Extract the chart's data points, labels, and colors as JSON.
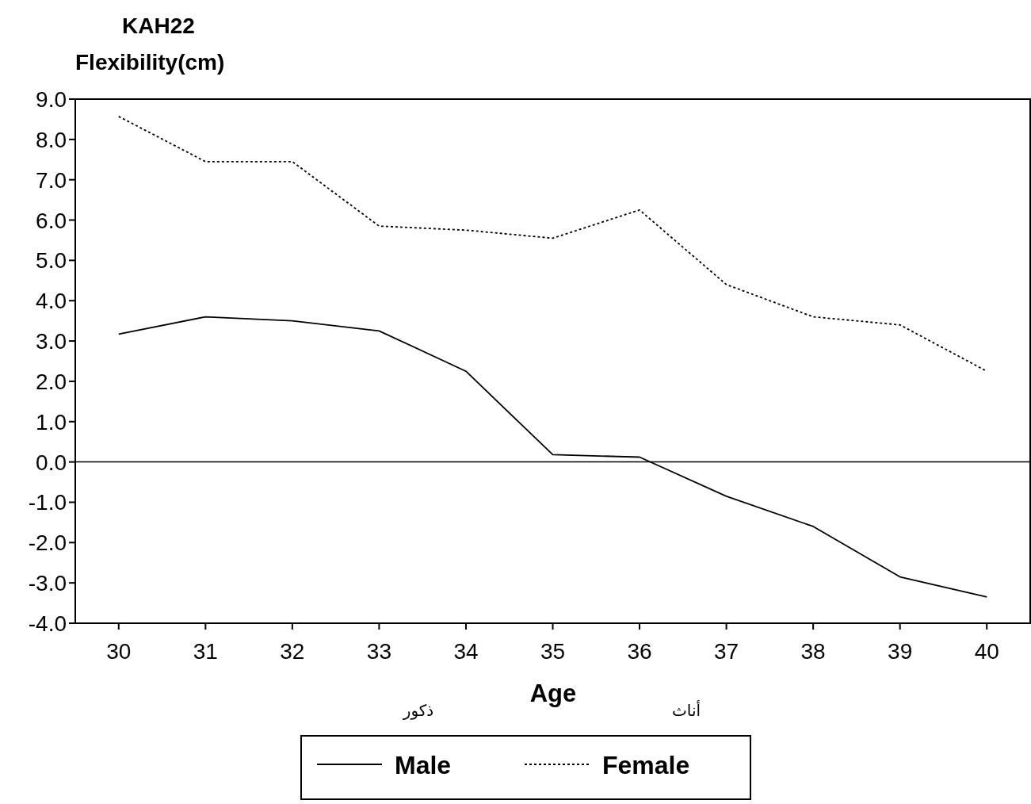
{
  "chart_data": {
    "type": "line",
    "title": "KAH22",
    "ylabel": "Flexibility(cm)",
    "xlabel": "Age",
    "x": [
      30,
      31,
      32,
      33,
      34,
      35,
      36,
      37,
      38,
      39,
      40
    ],
    "series": [
      {
        "name": "Male",
        "color": "#000000",
        "line_style": "solid",
        "values": [
          3.17,
          3.6,
          3.5,
          3.25,
          2.25,
          0.18,
          0.12,
          -0.85,
          -1.6,
          -2.85,
          -3.35
        ]
      },
      {
        "name": "Female",
        "color": "#000000",
        "line_style": "dotted",
        "values": [
          8.57,
          7.45,
          7.45,
          5.85,
          5.75,
          5.55,
          6.25,
          4.4,
          3.6,
          3.4,
          2.25
        ]
      }
    ],
    "xlim": [
      29.5,
      40.5
    ],
    "xticks": [
      30,
      31,
      32,
      33,
      34,
      35,
      36,
      37,
      38,
      39,
      40
    ],
    "ylim": [
      -4,
      9
    ],
    "yticks": [
      {
        "value": -4,
        "label": "-4.0"
      },
      {
        "value": -3,
        "label": "-3.0"
      },
      {
        "value": -2,
        "label": "-2.0"
      },
      {
        "value": -1,
        "label": "-1.0"
      },
      {
        "value": 0,
        "label": "0.0"
      },
      {
        "value": 1,
        "label": "1.0"
      },
      {
        "value": 2,
        "label": "2.0"
      },
      {
        "value": 3,
        "label": "3.0"
      },
      {
        "value": 4,
        "label": "4.0"
      },
      {
        "value": 5,
        "label": "5.0"
      },
      {
        "value": 6,
        "label": "6.0"
      },
      {
        "value": 7,
        "label": "7.0"
      },
      {
        "value": 8,
        "label": "8.0"
      },
      {
        "value": 9,
        "label": "9.0"
      }
    ],
    "ref_lines": [
      {
        "axis": "y",
        "value": 0,
        "color": "#000000",
        "line_style": "solid"
      }
    ],
    "annotations": [
      "ذكور",
      "أناث"
    ],
    "legend": "bottom",
    "grid": false,
    "marker": "none"
  }
}
